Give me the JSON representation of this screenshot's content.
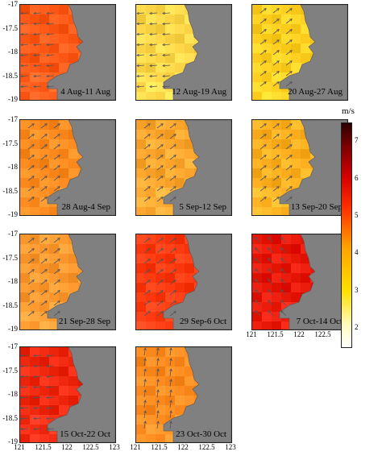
{
  "colorbar": {
    "unit": "m/s",
    "ticks": [
      "7",
      "6",
      "5",
      "4",
      "3",
      "2"
    ],
    "range": [
      1.5,
      7.5
    ]
  },
  "axes": {
    "y_ticks": [
      "-17",
      "-17.5",
      "-18",
      "-18.5",
      "-19"
    ],
    "x_ticks": [
      "121",
      "121.5",
      "122",
      "122.5",
      "123"
    ]
  },
  "panels": [
    {
      "label": "4 Aug-11 Aug",
      "speed": 4.8,
      "color": "#ff5a18",
      "arrow_dir": "west"
    },
    {
      "label": "12 Aug-19 Aug",
      "speed": 3.0,
      "color": "#ffd84a",
      "arrow_dir": "west"
    },
    {
      "label": "20 Aug-27 Aug",
      "speed": 3.0,
      "color": "#ffd020",
      "arrow_dir": "northeast"
    },
    {
      "label": "28 Aug-4 Sep",
      "speed": 3.8,
      "color": "#ff8c20",
      "arrow_dir": "northeast"
    },
    {
      "label": "5 Sep-12 Sep",
      "speed": 3.5,
      "color": "#ffa830",
      "arrow_dir": "northeast"
    },
    {
      "label": "13 Sep-20 Sep",
      "speed": 3.4,
      "color": "#ffb020",
      "arrow_dir": "northeast"
    },
    {
      "label": "21 Sep-28 Sep",
      "speed": 3.7,
      "color": "#ff9a30",
      "arrow_dir": "northeast"
    },
    {
      "label": "29 Sep-6 Oct",
      "speed": 4.8,
      "color": "#ff3a10",
      "arrow_dir": "northeast"
    },
    {
      "label": "7 Oct-14 Oct",
      "speed": 5.2,
      "color": "#e81808",
      "arrow_dir": "northwest"
    },
    {
      "label": "15 Oct-22 Oct",
      "speed": 5.0,
      "color": "#f02810",
      "arrow_dir": "west"
    },
    {
      "label": "23 Oct-30 Oct",
      "speed": 3.8,
      "color": "#ff8c20",
      "arrow_dir": "north"
    }
  ]
}
